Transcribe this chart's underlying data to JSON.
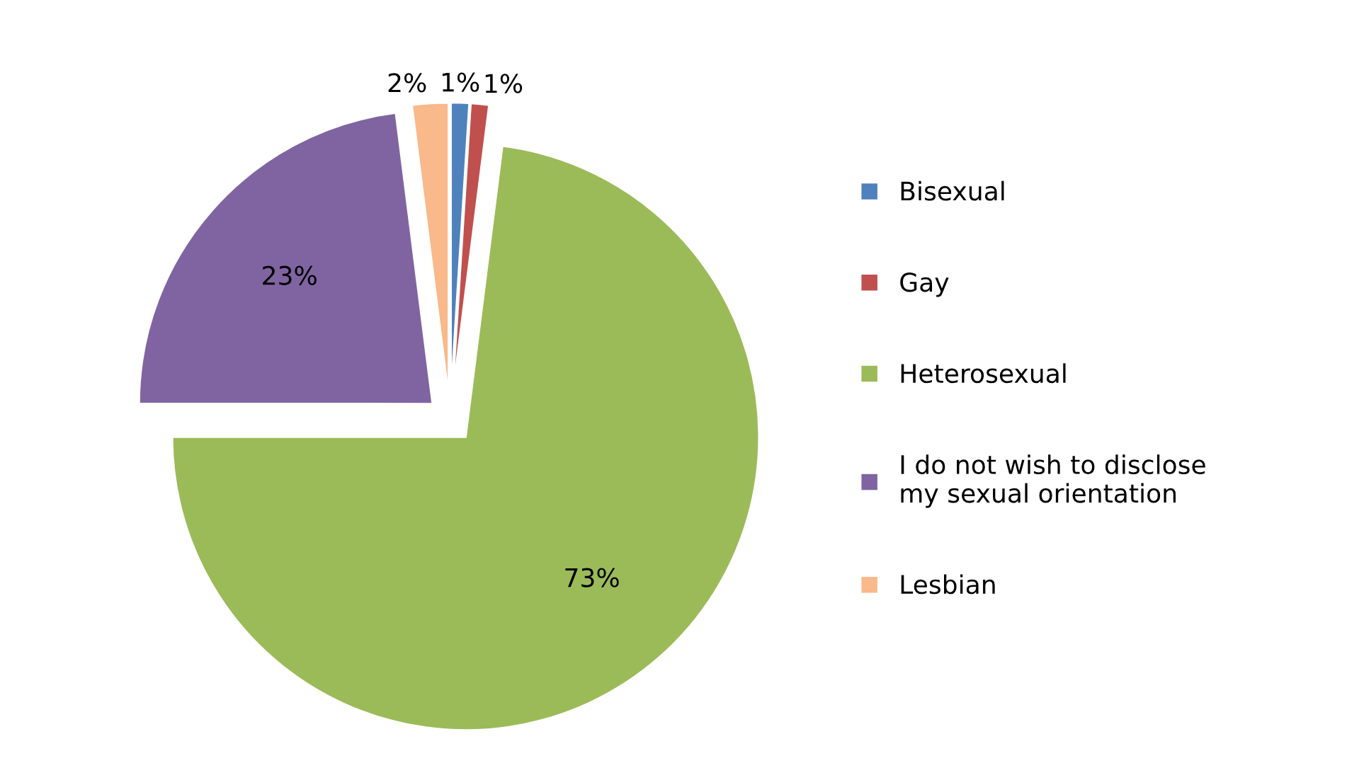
{
  "chart_data": {
    "type": "pie",
    "categories": [
      "Bisexual",
      "Gay",
      "Heterosexual",
      "I do not wish to disclose\nmy sexual orientation",
      "Lesbian"
    ],
    "values": [
      1,
      1,
      73,
      23,
      2
    ],
    "value_labels": [
      "1%",
      "1%",
      "73%",
      "23%",
      "2%"
    ],
    "colors": [
      "#4f81bd",
      "#c0504d",
      "#9bbb59",
      "#8064a2",
      "#f9b98a"
    ],
    "legend": "right"
  }
}
